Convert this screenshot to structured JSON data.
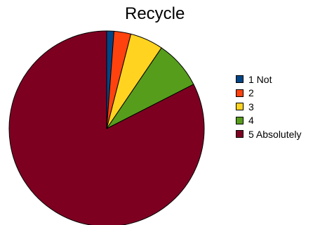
{
  "chart_data": {
    "type": "pie",
    "title": "Recycle",
    "categories": [
      "1 Not",
      "2",
      "3",
      "4",
      "5 Absolutely"
    ],
    "values": [
      1.2,
      2.8,
      5.5,
      8.0,
      82.5
    ],
    "colors": [
      "#004586",
      "#ff420e",
      "#ffd320",
      "#579d1c",
      "#7e0021"
    ],
    "legend": "right"
  }
}
